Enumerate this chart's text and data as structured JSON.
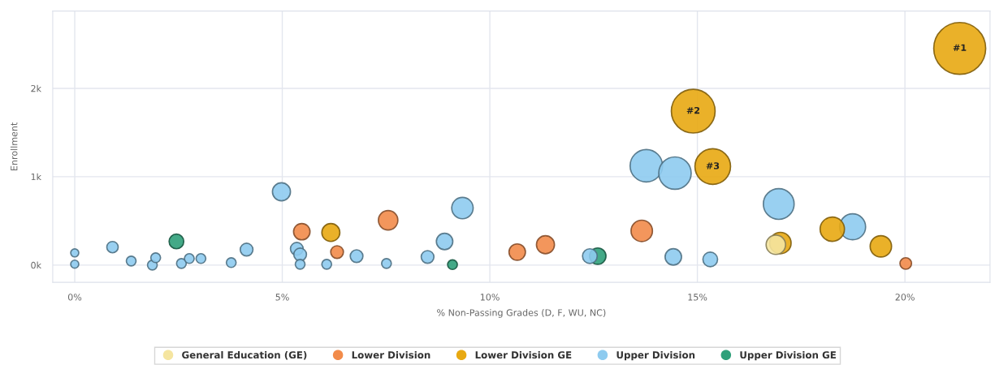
{
  "chart_data": {
    "type": "bubble",
    "xlabel": "% Non-Passing Grades (D, F, WU, NC)",
    "ylabel": "Enrollment",
    "xlim": [
      -0.53,
      22.05
    ],
    "ylim": [
      -195,
      2875
    ],
    "xticks": [
      {
        "value": 0,
        "label": "0%"
      },
      {
        "value": 5,
        "label": "5%"
      },
      {
        "value": 10,
        "label": "10%"
      },
      {
        "value": 15,
        "label": "15%"
      },
      {
        "value": 20,
        "label": "20%"
      }
    ],
    "yticks": [
      {
        "value": 0,
        "label": "0k"
      },
      {
        "value": 1000,
        "label": "1k"
      },
      {
        "value": 2000,
        "label": "2k"
      }
    ],
    "grid": true,
    "legend": "bottom",
    "marker": "circle",
    "series": [
      {
        "name": "General Education (GE)",
        "color": "#f5e5a0",
        "x": [
          16.89
        ],
        "values": [
          230
        ],
        "sizes": [
          0.14
        ]
      },
      {
        "name": "Lower Division",
        "color": "#f28b4a",
        "x": [
          5.47,
          6.32,
          7.55,
          10.66,
          11.34,
          13.66,
          20.02
        ],
        "values": [
          378,
          147,
          507,
          147,
          230,
          387,
          18
        ],
        "sizes": [
          0.1,
          0.06,
          0.14,
          0.1,
          0.12,
          0.17,
          0.05
        ]
      },
      {
        "name": "Lower Division GE",
        "color": "#e8a912",
        "x": [
          6.17,
          17.0,
          18.25,
          19.42,
          21.32,
          14.9,
          15.37
        ],
        "values": [
          369,
          249,
          406,
          212,
          2452,
          1742,
          1115
        ],
        "sizes": [
          0.12,
          0.17,
          0.22,
          0.17,
          1,
          0.71,
          0.47
        ]
      },
      {
        "name": "Upper Division",
        "color": "#8ecbef",
        "x": [
          0,
          0,
          0.91,
          1.36,
          1.87,
          1.95,
          2.57,
          2.76,
          3.04,
          3.77,
          4.14,
          4.98,
          5.35,
          5.43,
          5.43,
          6.07,
          6.79,
          7.51,
          8.5,
          8.91,
          9.34,
          12.41,
          13.77,
          14.42,
          14.46,
          15.31,
          16.96,
          18.74
        ],
        "values": [
          138,
          10,
          203,
          46,
          0,
          83,
          18,
          74,
          74,
          28,
          175,
          829,
          184,
          120,
          9,
          9,
          101,
          18,
          92,
          267,
          645,
          101,
          1124,
          92,
          1041,
          64,
          691,
          433
        ],
        "sizes": [
          0.024,
          0.024,
          0.048,
          0.035,
          0.035,
          0.035,
          0.035,
          0.035,
          0.035,
          0.035,
          0.06,
          0.12,
          0.06,
          0.06,
          0.035,
          0.035,
          0.06,
          0.035,
          0.06,
          0.1,
          0.17,
          0.08,
          0.39,
          0.1,
          0.39,
          0.08,
          0.35,
          0.25
        ]
      },
      {
        "name": "Upper Division GE",
        "color": "#2fa07a",
        "x": [
          2.45,
          9.1,
          12.6
        ],
        "values": [
          267,
          5,
          101
        ],
        "sizes": [
          0.08,
          0.035,
          0.1
        ]
      }
    ],
    "annotations": [
      {
        "text": "#1",
        "x": 21.32,
        "y": 2452
      },
      {
        "text": "#2",
        "x": 14.9,
        "y": 1742
      },
      {
        "text": "#3",
        "x": 15.37,
        "y": 1115
      }
    ]
  }
}
